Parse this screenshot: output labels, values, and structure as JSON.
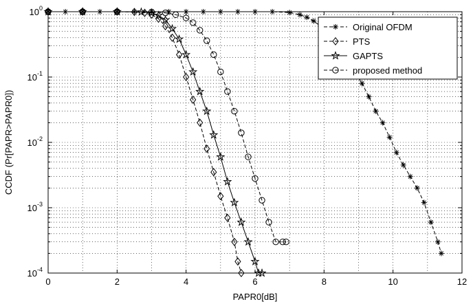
{
  "chart_data": {
    "type": "line",
    "xlabel": "PAPR0[dB]",
    "ylabel": "CCDF (Pr[PAPR>PAPR0])",
    "xlim": [
      0,
      12
    ],
    "ylim": [
      0.0001,
      1
    ],
    "yscale": "log",
    "grid": true,
    "legend_position": "top-right",
    "x_ticks": [
      0,
      2,
      4,
      6,
      8,
      10,
      12
    ],
    "x_tick_labels": [
      "0",
      "2",
      "4",
      "6",
      "8",
      "10",
      "12"
    ],
    "y_ticks": [
      1,
      0.1,
      0.01,
      0.001,
      0.0001
    ],
    "y_tick_labels": [
      {
        "base": "10",
        "exp": "0"
      },
      {
        "base": "10",
        "exp": "-1"
      },
      {
        "base": "10",
        "exp": "-2"
      },
      {
        "base": "10",
        "exp": "-3"
      },
      {
        "base": "10",
        "exp": "-4"
      }
    ],
    "series": [
      {
        "name": "Original OFDM",
        "marker": "asterisk",
        "line": "dashed",
        "x": [
          0,
          0.5,
          1,
          1.5,
          2,
          2.5,
          3,
          3.5,
          4,
          4.5,
          5,
          5.5,
          6,
          6.5,
          7,
          7.3,
          7.5,
          7.7,
          7.9,
          8.1,
          8.3,
          8.5,
          8.7,
          8.9,
          9.1,
          9.3,
          9.5,
          9.7,
          9.9,
          10.1,
          10.3,
          10.5,
          10.7,
          10.9,
          11.1,
          11.3,
          11.4
        ],
        "y": [
          1,
          1,
          1,
          1,
          1,
          1,
          1,
          1,
          1,
          1,
          1,
          1,
          1,
          1,
          0.97,
          0.9,
          0.82,
          0.72,
          0.6,
          0.48,
          0.36,
          0.26,
          0.18,
          0.12,
          0.08,
          0.05,
          0.03,
          0.02,
          0.012,
          0.007,
          0.0045,
          0.003,
          0.002,
          0.0012,
          0.0006,
          0.0003,
          0.0002
        ]
      },
      {
        "name": "PTS",
        "marker": "diamond",
        "line": "dashed",
        "x": [
          0,
          1,
          2,
          2.5,
          2.8,
          3,
          3.2,
          3.4,
          3.6,
          3.8,
          4,
          4.2,
          4.4,
          4.6,
          4.8,
          5,
          5.2,
          5.4,
          5.5,
          5.6
        ],
        "y": [
          1,
          1,
          1,
          0.99,
          0.96,
          0.9,
          0.78,
          0.6,
          0.4,
          0.22,
          0.1,
          0.045,
          0.02,
          0.008,
          0.0035,
          0.0015,
          0.0007,
          0.0003,
          0.00015,
          0.0001
        ]
      },
      {
        "name": "GAPTS",
        "marker": "star",
        "line": "solid",
        "x": [
          0,
          1,
          2,
          2.7,
          3,
          3.2,
          3.4,
          3.6,
          3.8,
          4,
          4.2,
          4.4,
          4.6,
          4.8,
          5,
          5.2,
          5.4,
          5.6,
          5.8,
          6,
          6.1,
          6.2
        ],
        "y": [
          1,
          1,
          1,
          0.99,
          0.96,
          0.88,
          0.75,
          0.55,
          0.38,
          0.22,
          0.12,
          0.06,
          0.03,
          0.013,
          0.006,
          0.0025,
          0.0012,
          0.0006,
          0.0003,
          0.00015,
          0.0001,
          0.0001
        ]
      },
      {
        "name": "proposed method",
        "marker": "circle",
        "line": "dashed",
        "x": [
          0,
          1,
          2,
          3,
          3.4,
          3.7,
          4,
          4.2,
          4.4,
          4.6,
          4.8,
          5,
          5.2,
          5.4,
          5.6,
          5.8,
          6,
          6.2,
          6.4,
          6.6,
          6.8,
          6.9
        ],
        "y": [
          1,
          1,
          1,
          0.99,
          0.96,
          0.9,
          0.8,
          0.68,
          0.52,
          0.36,
          0.22,
          0.12,
          0.06,
          0.03,
          0.014,
          0.006,
          0.0028,
          0.0013,
          0.0006,
          0.0003,
          0.0003,
          0.0003
        ]
      }
    ]
  }
}
